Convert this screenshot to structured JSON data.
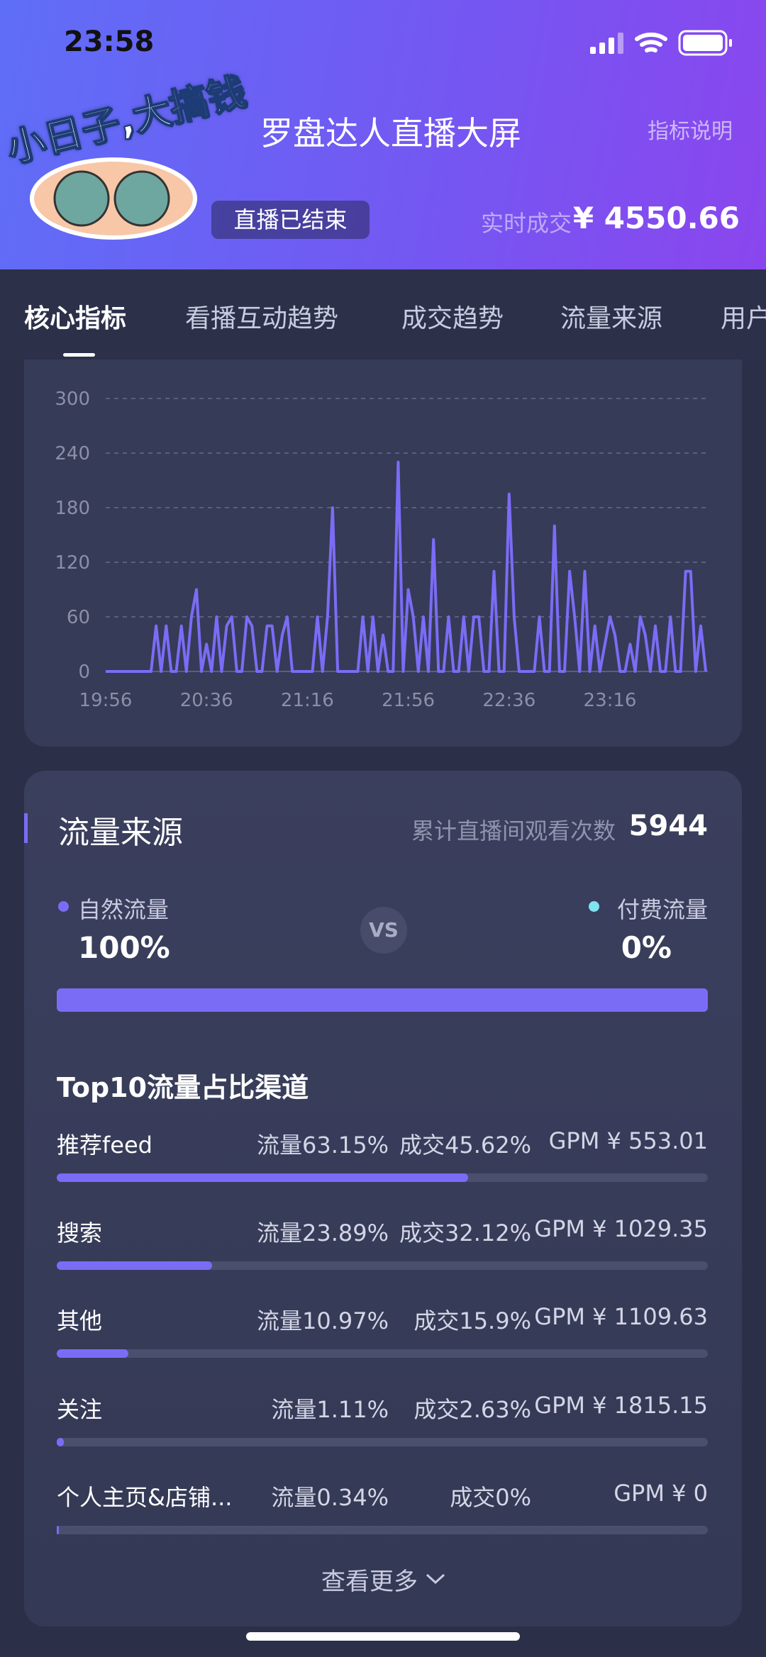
{
  "status_bar": {
    "time": "23:58"
  },
  "header": {
    "sticker": "小日子,大搞钱",
    "title": "罗盘达人直播大屏",
    "link": "指标说明",
    "status": "直播已结束",
    "deal_label": "实时成交",
    "deal_value": "¥ 4550.66"
  },
  "tabs": [
    "核心指标",
    "看播互动趋势",
    "成交趋势",
    "流量来源",
    "用户"
  ],
  "chart_data": {
    "type": "line",
    "color": "#7b6cf6",
    "categories": [
      "19:56",
      null,
      null,
      null,
      null,
      null,
      null,
      null,
      null,
      null,
      null,
      null,
      null,
      null,
      null,
      null,
      null,
      null,
      null,
      null,
      "20:36",
      null,
      null,
      null,
      null,
      null,
      null,
      null,
      null,
      null,
      null,
      null,
      null,
      null,
      null,
      null,
      null,
      null,
      null,
      null,
      "21:16",
      null,
      null,
      null,
      null,
      null,
      null,
      null,
      null,
      null,
      null,
      null,
      null,
      null,
      null,
      null,
      null,
      null,
      null,
      null,
      "21:56",
      null,
      null,
      null,
      null,
      null,
      null,
      null,
      null,
      null,
      null,
      null,
      null,
      null,
      null,
      null,
      null,
      null,
      null,
      null,
      "22:36",
      null,
      null,
      null,
      null,
      null,
      null,
      null,
      null,
      null,
      null,
      null,
      null,
      null,
      null,
      null,
      null,
      null,
      null,
      null,
      "23:16",
      null,
      null,
      null,
      null,
      null,
      null,
      null,
      null,
      null,
      null,
      null,
      null,
      null,
      null,
      null,
      null,
      null,
      null,
      null
    ],
    "values": [
      0,
      0,
      0,
      0,
      0,
      0,
      0,
      0,
      0,
      0,
      50,
      0,
      50,
      0,
      0,
      50,
      0,
      60,
      90,
      0,
      30,
      0,
      60,
      0,
      50,
      60,
      0,
      0,
      60,
      50,
      0,
      0,
      50,
      50,
      0,
      40,
      60,
      0,
      0,
      0,
      0,
      0,
      60,
      0,
      60,
      180,
      0,
      0,
      0,
      0,
      0,
      60,
      0,
      60,
      0,
      40,
      0,
      0,
      230,
      0,
      90,
      60,
      0,
      60,
      0,
      145,
      0,
      0,
      60,
      0,
      0,
      60,
      0,
      60,
      60,
      0,
      0,
      110,
      0,
      0,
      195,
      60,
      0,
      0,
      0,
      0,
      60,
      0,
      0,
      160,
      0,
      0,
      110,
      60,
      0,
      110,
      0,
      50,
      0,
      30,
      60,
      40,
      0,
      0,
      30,
      0,
      60,
      40,
      0,
      50,
      0,
      0,
      60,
      0,
      0,
      110,
      110,
      0,
      50,
      0
    ],
    "ylim": [
      0,
      300
    ],
    "yticks": [
      0,
      60,
      120,
      180,
      240,
      300
    ],
    "grid": true
  },
  "traffic": {
    "title": "流量来源",
    "total_label": "累计直播间观看次数",
    "total": "5944",
    "natural": {
      "label": "自然流量",
      "value": "100%"
    },
    "vs": "VS",
    "paid": {
      "label": "付费流量",
      "value": "0%"
    }
  },
  "channels": {
    "title": "Top10流量占比渠道",
    "rows": [
      {
        "name": "推荐feed",
        "traffic": 63.15,
        "traffic_label": "流量63.15%",
        "deal": "成交45.62%",
        "gpm": "GPM ¥ 553.01"
      },
      {
        "name": "搜索",
        "traffic": 23.89,
        "traffic_label": "流量23.89%",
        "deal": "成交32.12%",
        "gpm": "GPM ¥ 1029.35"
      },
      {
        "name": "其他",
        "traffic": 10.97,
        "traffic_label": "流量10.97%",
        "deal": "成交15.9%",
        "gpm": "GPM ¥ 1109.63"
      },
      {
        "name": "关注",
        "traffic": 1.11,
        "traffic_label": "流量1.11%",
        "deal": "成交2.63%",
        "gpm": "GPM ¥ 1815.15"
      },
      {
        "name": "个人主页&店铺...",
        "traffic": 0.34,
        "traffic_label": "流量0.34%",
        "deal": "成交0%",
        "gpm": "GPM ¥ 0"
      }
    ],
    "more": "查看更多"
  }
}
